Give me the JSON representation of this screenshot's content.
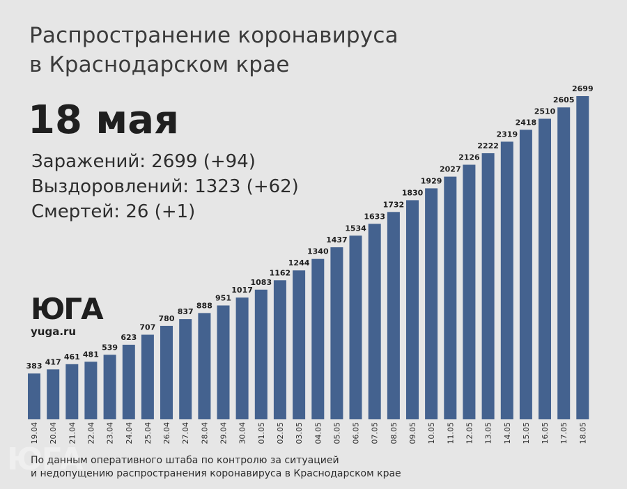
{
  "header": {
    "title_line1": "Распространение коронавируса",
    "title_line2": "в Краснодарском крае",
    "date": "18 мая"
  },
  "stats": {
    "infected": "Заражений: 2699 (+94)",
    "recovered": "Выздоровлений: 1323 (+62)",
    "deaths": "Смертей: 26 (+1)"
  },
  "logo": {
    "mark": "ЮГА",
    "url": "yuga.ru"
  },
  "footer": {
    "source_line1": "По данным оперативного штаба по контролю за ситуацией",
    "source_line2": "и недопущению распространения коронавируса в Краснодарском крае"
  },
  "colors": {
    "background": "#e6e6e6",
    "bar": "#44628f"
  },
  "chart_data": {
    "type": "bar",
    "title": "",
    "xlabel": "",
    "ylabel": "",
    "categories": [
      "19.04",
      "20.04",
      "21.04",
      "22.04",
      "23.04",
      "24.04",
      "25.04",
      "26.04",
      "27.04",
      "28.04",
      "29.04",
      "30.04",
      "01.05",
      "02.05",
      "03.05",
      "04.05",
      "05.05",
      "06.05",
      "07.05",
      "08.05",
      "09.05",
      "10.05",
      "11.05",
      "12.05",
      "13.05",
      "14.05",
      "15.05",
      "16.05",
      "17.05",
      "18.05"
    ],
    "values": [
      383,
      417,
      461,
      481,
      539,
      623,
      707,
      780,
      837,
      888,
      951,
      1017,
      1083,
      1162,
      1244,
      1340,
      1437,
      1534,
      1633,
      1732,
      1830,
      1929,
      2027,
      2126,
      2222,
      2319,
      2418,
      2510,
      2605,
      2699
    ],
    "data_labels": true,
    "tick_label_rotation": "vertical",
    "grid": false
  }
}
